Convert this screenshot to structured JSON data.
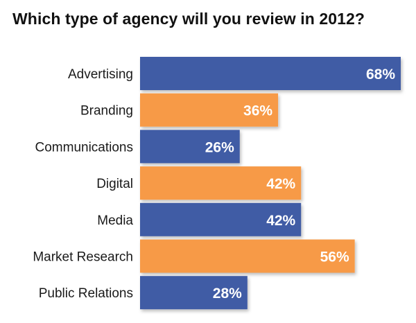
{
  "chart_data": {
    "type": "bar",
    "orientation": "horizontal",
    "title": "Which type of agency will you review in 2012?",
    "categories": [
      "Advertising",
      "Branding",
      "Communications",
      "Digital",
      "Media",
      "Market Research",
      "Public Relations"
    ],
    "values": [
      68,
      36,
      26,
      42,
      42,
      56,
      28
    ],
    "value_labels": [
      "68%",
      "36%",
      "26%",
      "42%",
      "42%",
      "56%",
      "28%"
    ],
    "unit": "%",
    "xlabel": "",
    "ylabel": "",
    "xlim": [
      0,
      68
    ],
    "grid": false,
    "colors": [
      "#3f5ba5",
      "#f79a46"
    ]
  }
}
